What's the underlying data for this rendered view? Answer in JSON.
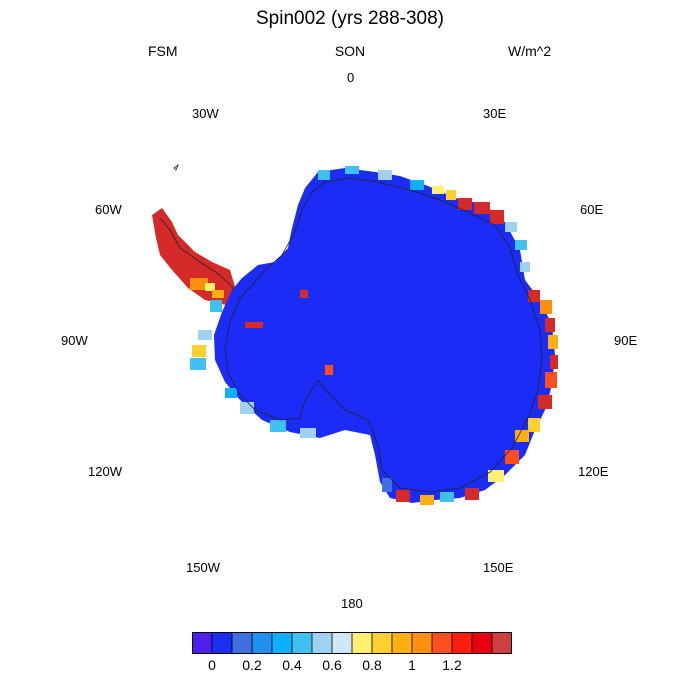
{
  "header": {
    "title": "Spin002 (yrs 288-308)",
    "left_label": "FSM",
    "center_label": "SON",
    "right_label": "W/m^2"
  },
  "longitude_labels": {
    "lon_0": "0",
    "lon_30e": "30E",
    "lon_60e": "60E",
    "lon_90e": "90E",
    "lon_120e": "120E",
    "lon_150e": "150E",
    "lon_180": "180",
    "lon_150w": "150W",
    "lon_120w": "120W",
    "lon_90w": "90W",
    "lon_60w": "60W",
    "lon_30w": "30W"
  },
  "colorbar": {
    "colors": [
      "#4f1ff0",
      "#1b2ff0",
      "#3f6fe0",
      "#1f8ff0",
      "#0fafff",
      "#3fc0f0",
      "#9fd2f0",
      "#cfe8f7",
      "#fff06f",
      "#ffd02f",
      "#ffaf0f",
      "#ff8f0f",
      "#ff4f1f",
      "#ff1f0f",
      "#e7000f",
      "#cf3f3f"
    ],
    "tick_labels": [
      "0",
      "0.2",
      "0.4",
      "0.6",
      "0.8",
      "1",
      "1.2"
    ]
  },
  "colors": {
    "ice_interior": "#1a2cf5",
    "peninsula": "#d42a2a"
  }
}
